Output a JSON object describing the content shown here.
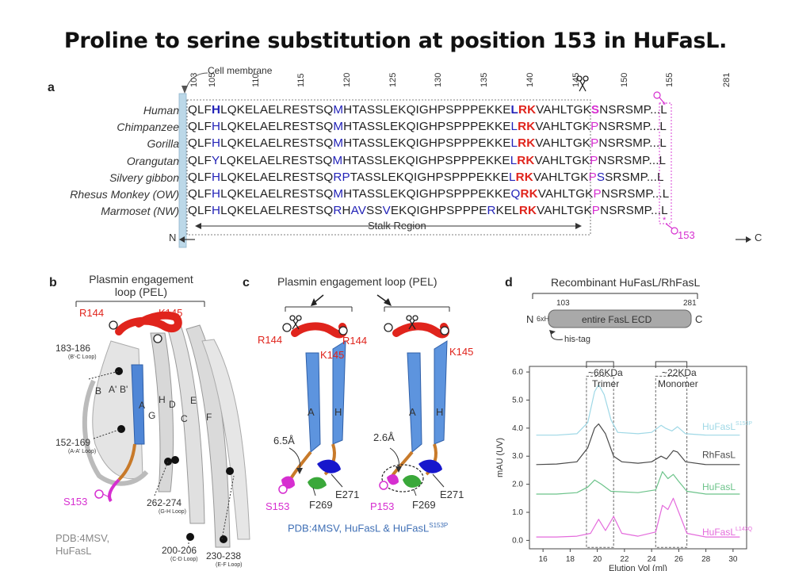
{
  "title": "Proline to serine substitution at position 153 in HuFasL.",
  "panel_a": {
    "label": "a",
    "membrane_label": "Cell membrane",
    "positions": [
      "103",
      "105",
      "110",
      "115",
      "120",
      "125",
      "130",
      "135",
      "140",
      "145",
      "150",
      "155",
      "281"
    ],
    "rows": [
      {
        "species": "Human",
        "seq": "QLFHLQKELAELRESTSQMHTASSLEKQIGHPSPPPEKKELRKVAHLTGKSNSRSMP...L"
      },
      {
        "species": "Chimpanzee",
        "seq": "QLFHLQKELAELRESTSQMHTASSLEKQIGHPSPPPEKKELRKVAHLTGKPNSRSMP...L"
      },
      {
        "species": "Gorilla",
        "seq": "QLFHLQKELAELRESTSQMHTASSLEKQIGHPSPPPEKKELRKVAHLTGKPNSRSMP...L"
      },
      {
        "species": "Orangutan",
        "seq": "QLFYLQKELAELRESTSQMHTASSLEKQIGHPSPPPEKKELRKVAHLTGKPNSRSMP...L"
      },
      {
        "species": "Silvery gibbon",
        "seq": "QLFHLQKELAELRESTSQRPTASSLEKQIGHPSPPPEKKELRKVAHLTGKPSSRSMP...L"
      },
      {
        "species": "Rhesus Monkey (OW)",
        "seq": "QLFHLQKELAELRESTSQMHTASSLEKQIGHPSPPPEKKEQRKVAHLTGKPNSRSMP...L"
      },
      {
        "species": "Marmoset (NW)",
        "seq": "QLFHLQKELAELRESTSQRHAVSSVEKQIGHPSPPPERKELRKVAHLTGKPNSRSMP...L"
      }
    ],
    "n_label": "N",
    "c_label": "C",
    "stalk_label": "Stalk Region",
    "site_label": "153"
  },
  "panel_b": {
    "label": "b",
    "pel_label": "Plasmin engagement loop (PEL)",
    "r144": "R144",
    "k145": "K145",
    "loops": [
      {
        "name": "183-186",
        "sub": "(B'-C Loop)"
      },
      {
        "name": "152-169",
        "sub": "(A-A' Loop)"
      },
      {
        "name": "262-274",
        "sub": "(G-H Loop)"
      },
      {
        "name": "200-206",
        "sub": "(C-D Loop)"
      },
      {
        "name": "230-238",
        "sub": "(E-F Loop)"
      }
    ],
    "strands": [
      "B",
      "A'",
      "B'",
      "A",
      "H",
      "D",
      "E",
      "G",
      "C",
      "F"
    ],
    "s153": "S153",
    "pdb": "PDB:4MSV,",
    "protein": "HuFasL"
  },
  "panel_c": {
    "label": "c",
    "pel_label": "Plasmin engagement loop (PEL)",
    "r144": "R144",
    "k145": "K145",
    "strand_a": "A",
    "strand_h": "H",
    "dist_left": "6.5Å",
    "dist_right": "2.6Å",
    "e271": "E271",
    "f269": "F269",
    "s153": "S153",
    "p153": "P153",
    "caption": "PDB:4MSV, HuFasL & HuFasL",
    "caption_sup": "S153P"
  },
  "panel_d": {
    "label": "d",
    "construct_title": "Recombinant HuFasL/RhFasL",
    "start": "103",
    "end": "281",
    "n": "N",
    "c": "C",
    "his": "6xH",
    "ecd": "entire FasL ECD",
    "his_tag": "his-tag",
    "trimer": "~66KDa",
    "trimer2": "Trimer",
    "monomer": "~22KDa",
    "monomer2": "Monomer"
  },
  "chart_data": {
    "type": "line",
    "xlabel": "Elution Vol (ml)",
    "ylabel": "mAU (UV)",
    "xlim": [
      15,
      31
    ],
    "ylim": [
      -0.3,
      6.2
    ],
    "xticks": [
      "16",
      "18",
      "20",
      "22",
      "24",
      "26",
      "28",
      "30"
    ],
    "yticks": [
      "0.0",
      "1.0",
      "2.0",
      "3.0",
      "4.0",
      "5.0",
      "6.0"
    ],
    "series": [
      {
        "name": "HuFasL",
        "sup": "S153P",
        "color": "#9fd8e6",
        "values": [
          [
            15.5,
            3.75
          ],
          [
            17,
            3.75
          ],
          [
            18.5,
            3.8
          ],
          [
            19.3,
            4.2
          ],
          [
            19.8,
            5.3
          ],
          [
            20.1,
            5.55
          ],
          [
            20.5,
            5.2
          ],
          [
            21,
            4.3
          ],
          [
            21.5,
            3.85
          ],
          [
            23,
            3.8
          ],
          [
            24,
            3.85
          ],
          [
            24.7,
            4.1
          ],
          [
            25,
            4.0
          ],
          [
            25.5,
            3.9
          ],
          [
            25.9,
            4.05
          ],
          [
            26.5,
            3.8
          ],
          [
            28,
            3.75
          ],
          [
            30.5,
            3.75
          ]
        ]
      },
      {
        "name": "RhFasL",
        "sup": "",
        "color": "#4a4a4a",
        "values": [
          [
            15.5,
            2.7
          ],
          [
            17,
            2.72
          ],
          [
            18.5,
            2.8
          ],
          [
            19.3,
            3.3
          ],
          [
            19.8,
            4.0
          ],
          [
            20.1,
            4.15
          ],
          [
            20.6,
            3.8
          ],
          [
            21.2,
            3.0
          ],
          [
            21.8,
            2.8
          ],
          [
            23,
            2.75
          ],
          [
            24,
            2.8
          ],
          [
            24.7,
            3.0
          ],
          [
            25.1,
            2.9
          ],
          [
            25.6,
            3.2
          ],
          [
            25.9,
            3.15
          ],
          [
            26.5,
            2.8
          ],
          [
            28,
            2.7
          ],
          [
            30.5,
            2.7
          ]
        ]
      },
      {
        "name": "HuFasL",
        "sup": "",
        "color": "#6cc38a",
        "values": [
          [
            15.5,
            1.65
          ],
          [
            17,
            1.65
          ],
          [
            18.5,
            1.7
          ],
          [
            19.3,
            1.9
          ],
          [
            19.8,
            2.15
          ],
          [
            20.3,
            2.0
          ],
          [
            21,
            1.75
          ],
          [
            23,
            1.7
          ],
          [
            24.3,
            1.8
          ],
          [
            24.8,
            2.45
          ],
          [
            25.2,
            2.2
          ],
          [
            25.6,
            2.35
          ],
          [
            26,
            2.1
          ],
          [
            26.6,
            1.75
          ],
          [
            28,
            1.65
          ],
          [
            30.5,
            1.65
          ]
        ]
      },
      {
        "name": "HuFasL",
        "sup": "L143Q",
        "color": "#e46bdc",
        "values": [
          [
            15.5,
            0.12
          ],
          [
            17,
            0.12
          ],
          [
            18.5,
            0.15
          ],
          [
            19.5,
            0.25
          ],
          [
            20.1,
            0.75
          ],
          [
            20.6,
            0.35
          ],
          [
            21.2,
            0.85
          ],
          [
            21.8,
            0.25
          ],
          [
            23,
            0.15
          ],
          [
            24.3,
            0.3
          ],
          [
            24.8,
            1.25
          ],
          [
            25.2,
            1.1
          ],
          [
            25.6,
            1.5
          ],
          [
            26,
            1.0
          ],
          [
            26.6,
            0.25
          ],
          [
            28,
            0.12
          ],
          [
            30.5,
            0.12
          ]
        ]
      }
    ]
  }
}
